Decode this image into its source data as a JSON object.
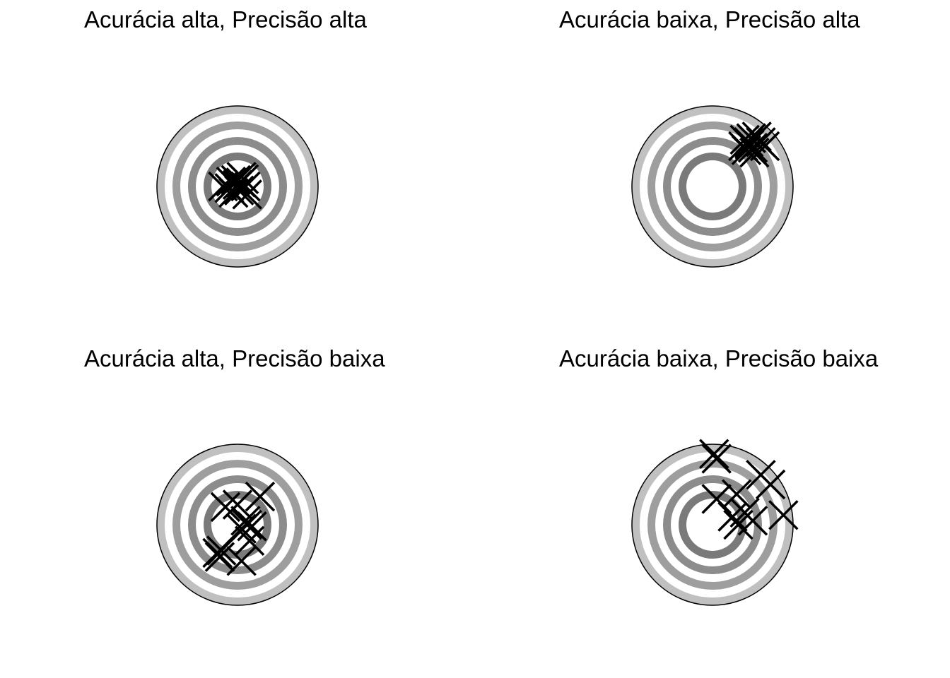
{
  "chart_data": [
    {
      "type": "scatter",
      "title": "Acurácia alta, Precisão alta",
      "xlim": [
        -1,
        1
      ],
      "ylim": [
        -1,
        1
      ],
      "grid": false,
      "marker": "x",
      "points": [
        {
          "x": -0.02,
          "y": 0.08
        },
        {
          "x": 0.05,
          "y": 0.12
        },
        {
          "x": -0.1,
          "y": -0.02
        },
        {
          "x": 0.1,
          "y": 0.0
        },
        {
          "x": -0.05,
          "y": -0.08
        },
        {
          "x": 0.02,
          "y": -0.05
        },
        {
          "x": 0.0,
          "y": 0.02
        },
        {
          "x": -0.18,
          "y": 0.0
        },
        {
          "x": 0.12,
          "y": -0.1
        },
        {
          "x": 0.04,
          "y": 0.05
        },
        {
          "x": -0.08,
          "y": 0.06
        },
        {
          "x": 0.08,
          "y": 0.09
        }
      ]
    },
    {
      "type": "scatter",
      "title": "Acurácia baixa, Precisão alta",
      "xlim": [
        -1,
        1
      ],
      "ylim": [
        -1,
        1
      ],
      "grid": false,
      "marker": "x",
      "points": [
        {
          "x": 0.38,
          "y": 0.5
        },
        {
          "x": 0.45,
          "y": 0.55
        },
        {
          "x": 0.55,
          "y": 0.62
        },
        {
          "x": 0.6,
          "y": 0.55
        },
        {
          "x": 0.42,
          "y": 0.45
        },
        {
          "x": 0.5,
          "y": 0.48
        },
        {
          "x": 0.48,
          "y": 0.6
        },
        {
          "x": 0.65,
          "y": 0.5
        },
        {
          "x": 0.4,
          "y": 0.58
        },
        {
          "x": 0.52,
          "y": 0.42
        },
        {
          "x": 0.46,
          "y": 0.52
        }
      ]
    },
    {
      "type": "scatter",
      "title": "Acurácia alta, Precisão baixa",
      "xlim": [
        -1,
        1
      ],
      "ylim": [
        -1,
        1
      ],
      "grid": false,
      "marker": "x",
      "points": [
        {
          "x": -0.15,
          "y": 0.22
        },
        {
          "x": 0.28,
          "y": 0.35
        },
        {
          "x": 0.1,
          "y": 0.05
        },
        {
          "x": 0.18,
          "y": -0.02
        },
        {
          "x": 0.05,
          "y": -0.05
        },
        {
          "x": -0.25,
          "y": -0.35
        },
        {
          "x": -0.2,
          "y": -0.32
        },
        {
          "x": 0.05,
          "y": -0.45
        },
        {
          "x": 0.12,
          "y": 0.0
        },
        {
          "x": 0.15,
          "y": -0.2
        },
        {
          "x": 0.0,
          "y": 0.25
        },
        {
          "x": -0.22,
          "y": -0.4
        }
      ]
    },
    {
      "type": "scatter",
      "title": "Acurácia baixa, Precisão baixa",
      "xlim": [
        -1,
        1
      ],
      "ylim": [
        -1,
        1
      ],
      "grid": false,
      "marker": "x",
      "points": [
        {
          "x": 0.02,
          "y": 0.88
        },
        {
          "x": 0.05,
          "y": 0.82
        },
        {
          "x": 0.6,
          "y": 0.62
        },
        {
          "x": 0.72,
          "y": 0.5
        },
        {
          "x": 0.3,
          "y": 0.38
        },
        {
          "x": 0.05,
          "y": 0.32
        },
        {
          "x": 0.25,
          "y": 0.1
        },
        {
          "x": 0.32,
          "y": 0.0
        },
        {
          "x": 0.5,
          "y": 0.05
        },
        {
          "x": 0.88,
          "y": 0.12
        },
        {
          "x": 0.4,
          "y": 0.15
        }
      ]
    }
  ]
}
